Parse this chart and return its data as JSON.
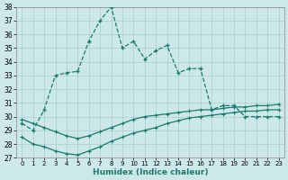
{
  "xlabel": "Humidex (Indice chaleur)",
  "x": [
    0,
    1,
    2,
    3,
    4,
    5,
    6,
    7,
    8,
    9,
    10,
    11,
    12,
    13,
    14,
    15,
    16,
    17,
    18,
    19,
    20,
    21,
    22,
    23
  ],
  "y_main": [
    29.5,
    29.0,
    30.5,
    33.0,
    33.2,
    33.3,
    35.5,
    37.0,
    38.0,
    35.0,
    35.5,
    34.2,
    34.8,
    35.2,
    33.2,
    33.5,
    33.5,
    30.5,
    30.8,
    30.8,
    30.0,
    30.0,
    30.0,
    30.0
  ],
  "y_lower1": [
    28.5,
    28.0,
    27.8,
    27.5,
    27.3,
    27.2,
    27.5,
    27.8,
    28.2,
    28.5,
    28.8,
    29.0,
    29.2,
    29.5,
    29.7,
    29.9,
    30.0,
    30.1,
    30.2,
    30.3,
    30.4,
    30.4,
    30.5,
    30.5
  ],
  "y_lower2": [
    29.8,
    29.5,
    29.2,
    28.9,
    28.6,
    28.4,
    28.6,
    28.9,
    29.2,
    29.5,
    29.8,
    30.0,
    30.1,
    30.2,
    30.3,
    30.4,
    30.5,
    30.5,
    30.6,
    30.7,
    30.7,
    30.8,
    30.8,
    30.9
  ],
  "color": "#1a7a6e",
  "bg_color": "#cce8e8",
  "grid_color": "#aacece",
  "ylim": [
    27,
    38
  ],
  "yticks": [
    27,
    28,
    29,
    30,
    31,
    32,
    33,
    34,
    35,
    36,
    37,
    38
  ],
  "figsize": [
    3.2,
    2.0
  ],
  "dpi": 100
}
